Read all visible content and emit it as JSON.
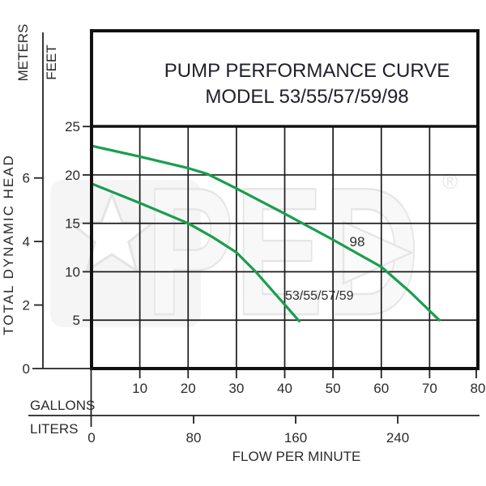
{
  "title": {
    "line1": "PUMP PERFORMANCE CURVE",
    "line2": "MODEL 53/55/57/59/98"
  },
  "axes": {
    "left_primary_label": "METERS",
    "left_secondary_label": "FEET",
    "left_axis_title": "TOTAL DYNAMIC HEAD",
    "bottom_primary_label": "GALLONS",
    "bottom_secondary_label": "LITERS",
    "bottom_axis_title": "FLOW PER MINUTE"
  },
  "watermark": {
    "text": "PED",
    "registered": "®"
  },
  "colors": {
    "curve_green": "#1A9E4D",
    "grid_line": "#1b1b1b",
    "border": "#111111",
    "label_text": "#2b2b2b",
    "title_text": "#20202a",
    "watermark_gray": "#e6e6e6",
    "watermark_fill": "#f6f6f6",
    "background": "#ffffff"
  },
  "chart_data": {
    "type": "line",
    "title": "PUMP PERFORMANCE CURVE MODEL 53/55/57/59/98",
    "xlabel": "FLOW PER MINUTE",
    "ylabel": "TOTAL DYNAMIC HEAD",
    "grid": true,
    "legend_position": "inline-curve-labels",
    "x_axis": {
      "primary_unit": "GALLONS",
      "primary_ticks": [
        10,
        20,
        30,
        40,
        50,
        60,
        70,
        80
      ],
      "primary_range": [
        0,
        80
      ],
      "secondary_unit": "LITERS",
      "secondary_ticks": [
        0,
        80,
        160,
        240
      ],
      "liters_per_gallon": 3.7854
    },
    "y_axis": {
      "primary_unit": "FEET",
      "primary_ticks": [
        5,
        10,
        15,
        20,
        25
      ],
      "primary_range": [
        0,
        25
      ],
      "secondary_unit": "METERS",
      "secondary_ticks": [
        0,
        2,
        4,
        6
      ],
      "feet_per_meter": 3.2808
    },
    "series": [
      {
        "name": "98",
        "units": "gallons_vs_feet",
        "points": [
          [
            0,
            23.0
          ],
          [
            10,
            21.9
          ],
          [
            20,
            20.7
          ],
          [
            24,
            20.1
          ],
          [
            30,
            18.6
          ],
          [
            40,
            16.0
          ],
          [
            50,
            13.3
          ],
          [
            60,
            10.5
          ],
          [
            66,
            7.9
          ],
          [
            72,
            5.0
          ]
        ]
      },
      {
        "name": "53/55/57/59",
        "units": "gallons_vs_feet",
        "points": [
          [
            0,
            19.1
          ],
          [
            10,
            17.1
          ],
          [
            20,
            15.0
          ],
          [
            25,
            13.6
          ],
          [
            30,
            12.0
          ],
          [
            34,
            10.0
          ],
          [
            40,
            6.6
          ],
          [
            43,
            4.9
          ]
        ]
      }
    ]
  }
}
